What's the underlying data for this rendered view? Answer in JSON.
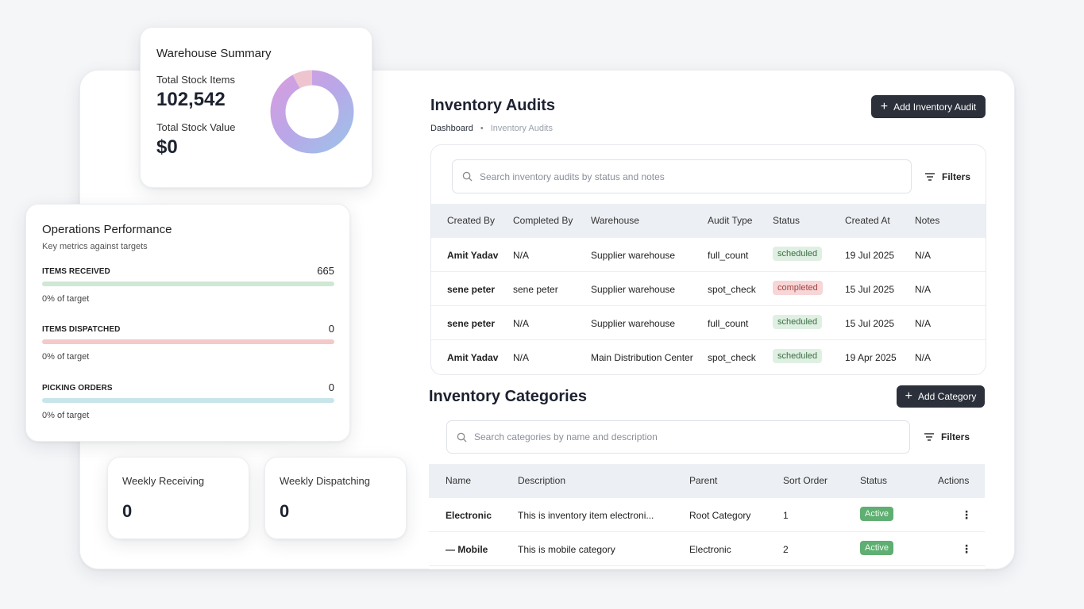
{
  "warehouse_summary": {
    "title": "Warehouse Summary",
    "total_stock_items_label": "Total Stock Items",
    "total_stock_items_value": "102,542",
    "total_stock_value_label": "Total Stock Value",
    "total_stock_value_value": "$0"
  },
  "operations": {
    "title": "Operations Performance",
    "subtitle": "Key metrics against targets",
    "metrics": [
      {
        "name": "ITEMS RECEIVED",
        "value": "665",
        "target": "0% of target",
        "color": "#cfe8d4"
      },
      {
        "name": "ITEMS DISPATCHED",
        "value": "0",
        "target": "0% of target",
        "color": "#f3c9c9"
      },
      {
        "name": "PICKING ORDERS",
        "value": "0",
        "target": "0% of target",
        "color": "#c7e5ea"
      }
    ]
  },
  "weekly": {
    "receiving_label": "Weekly Receiving",
    "receiving_value": "0",
    "dispatching_label": "Weekly Dispatching",
    "dispatching_value": "0"
  },
  "audits": {
    "title": "Inventory Audits",
    "add_button": "Add Inventory Audit",
    "breadcrumb": [
      "Dashboard",
      "Inventory Audits"
    ],
    "search_placeholder": "Search inventory audits by status and notes",
    "filters_label": "Filters",
    "columns": [
      "Created By",
      "Completed By",
      "Warehouse",
      "Audit Type",
      "Status",
      "Created At",
      "Notes"
    ],
    "rows": [
      {
        "created_by": "Amit Yadav",
        "completed_by": "N/A",
        "warehouse": "Supplier warehouse",
        "audit_type": "full_count",
        "status": "scheduled",
        "created_at": "19 Jul 2025",
        "notes": "N/A"
      },
      {
        "created_by": "sene peter",
        "completed_by": "sene peter",
        "warehouse": "Supplier warehouse",
        "audit_type": "spot_check",
        "status": "completed",
        "created_at": "15 Jul 2025",
        "notes": "N/A"
      },
      {
        "created_by": "sene peter",
        "completed_by": "N/A",
        "warehouse": "Supplier warehouse",
        "audit_type": "full_count",
        "status": "scheduled",
        "created_at": "15 Jul 2025",
        "notes": "N/A"
      },
      {
        "created_by": "Amit Yadav",
        "completed_by": "N/A",
        "warehouse": "Main Distribution Center",
        "audit_type": "spot_check",
        "status": "scheduled",
        "created_at": "19 Apr 2025",
        "notes": "N/A"
      }
    ]
  },
  "categories": {
    "title": "Inventory Categories",
    "add_button": "Add Category",
    "search_placeholder": "Search categories by name and description",
    "filters_label": "Filters",
    "columns": [
      "Name",
      "Description",
      "Parent",
      "Sort Order",
      "Status",
      "Actions"
    ],
    "rows": [
      {
        "name": "Electronic",
        "description": "This is inventory item electroni...",
        "parent": "Root Category",
        "sort_order": "1",
        "status": "Active"
      },
      {
        "name": "— Mobile",
        "description": "This is mobile category",
        "parent": "Electronic",
        "sort_order": "2",
        "status": "Active"
      }
    ]
  },
  "colors": {
    "dark_button": "#2b303b",
    "scheduled_bg": "#dff0e2",
    "completed_bg": "#f6d6d6",
    "active_bg": "#5fae72"
  }
}
